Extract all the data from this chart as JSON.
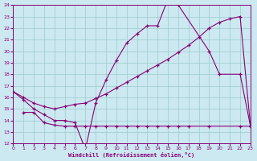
{
  "xlabel": "Windchill (Refroidissement éolien,°C)",
  "bg_color": "#cce8f0",
  "line_color": "#880077",
  "grid_color": "#99cccc",
  "xmin": 0,
  "xmax": 23,
  "ymin": 12,
  "ymax": 24,
  "line1_x": [
    0,
    1,
    2,
    3,
    4,
    5,
    6,
    7,
    8,
    9,
    10,
    11,
    12,
    13,
    14,
    15,
    16,
    19,
    20,
    22,
    23
  ],
  "line1_y": [
    16.5,
    15.8,
    15.0,
    14.5,
    14.0,
    14.0,
    13.8,
    11.5,
    15.5,
    17.5,
    19.2,
    20.7,
    21.5,
    22.2,
    22.2,
    24.5,
    24.0,
    20.0,
    18.0,
    18.0,
    13.5
  ],
  "line2_x": [
    0,
    1,
    2,
    3,
    4,
    5,
    6,
    7,
    8,
    9,
    10,
    11,
    12,
    13,
    14,
    15,
    16,
    17,
    18,
    19,
    20,
    21,
    22,
    23
  ],
  "line2_y": [
    16.5,
    16.0,
    15.5,
    15.2,
    15.0,
    15.2,
    15.4,
    15.5,
    15.9,
    16.3,
    16.8,
    17.3,
    17.8,
    18.3,
    18.8,
    19.3,
    19.9,
    20.5,
    21.2,
    22.0,
    22.5,
    22.8,
    23.0,
    13.5
  ],
  "line3_x": [
    1,
    2,
    3,
    4,
    5,
    6,
    7,
    8,
    9,
    10,
    11,
    12,
    13,
    14,
    15,
    16,
    17,
    19,
    22,
    23
  ],
  "line3_y": [
    14.7,
    14.7,
    13.8,
    13.6,
    13.5,
    13.5,
    13.5,
    13.5,
    13.5,
    13.5,
    13.5,
    13.5,
    13.5,
    13.5,
    13.5,
    13.5,
    13.5,
    13.5,
    13.5,
    13.5
  ]
}
